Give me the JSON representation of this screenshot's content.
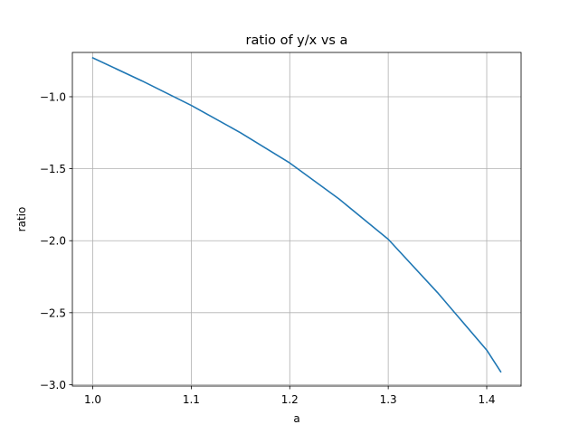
{
  "chart_data": {
    "type": "line",
    "title": "ratio of y/x vs a",
    "xlabel": "a",
    "ylabel": "ratio",
    "xlim": [
      0.9793,
      1.4349
    ],
    "ylim": [
      -3.0097,
      -0.6924
    ],
    "grid": true,
    "xticks": [
      1.0,
      1.1,
      1.2,
      1.3,
      1.4
    ],
    "xtick_labels": [
      "1.0",
      "1.1",
      "1.2",
      "1.3",
      "1.4"
    ],
    "yticks": [
      -1.0,
      -1.5,
      -2.0,
      -2.5,
      -3.0
    ],
    "ytick_labels": [
      "−1.0",
      "−1.5",
      "−2.0",
      "−2.5",
      "−3.0"
    ],
    "series": [
      {
        "color": "#1f77b4",
        "x": [
          1.0,
          1.05,
          1.1,
          1.15,
          1.2,
          1.25,
          1.3,
          1.35,
          1.4,
          1.4142
        ],
        "y": [
          -0.73,
          -0.89,
          -1.06,
          -1.25,
          -1.46,
          -1.71,
          -1.99,
          -2.36,
          -2.76,
          -2.91
        ]
      }
    ]
  }
}
